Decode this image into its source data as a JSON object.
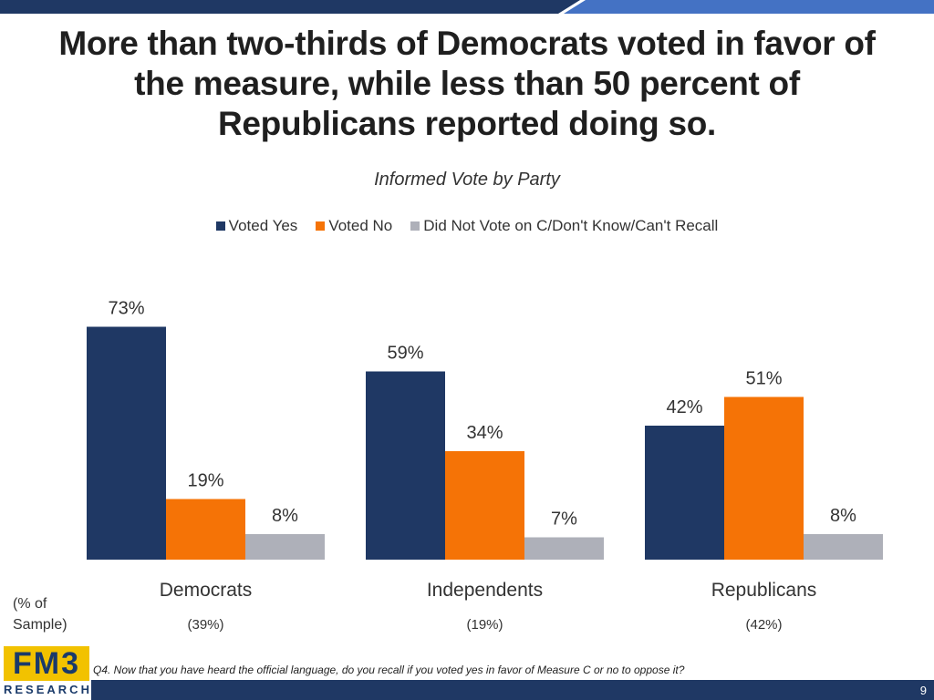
{
  "title": "More than two-thirds of Democrats voted in favor of the measure, while less than 50 percent of Republicans reported doing so.",
  "colors": {
    "voted_yes": "#1f3864",
    "voted_no": "#f57306",
    "did_not_vote": "#aeb0b9",
    "band_dark": "#1f3864",
    "band_light": "#4472c4"
  },
  "chart_data": {
    "type": "bar",
    "title": "Informed Vote by Party",
    "categories": [
      "Democrats",
      "Independents",
      "Republicans"
    ],
    "category_samples": [
      "(39%)",
      "(19%)",
      "(42%)"
    ],
    "series": [
      {
        "name": "Voted Yes",
        "values": [
          73,
          59,
          42
        ],
        "labels": [
          "73%",
          "59%",
          "42%"
        ]
      },
      {
        "name": "Voted No",
        "values": [
          19,
          34,
          51
        ],
        "labels": [
          "19%",
          "34%",
          "51%"
        ]
      },
      {
        "name": "Did Not Vote on C/Don't Know/Can't Recall",
        "values": [
          8,
          7,
          8
        ],
        "labels": [
          "8%",
          "7%",
          "8%"
        ]
      }
    ],
    "ylim": [
      0,
      75
    ],
    "grid": false,
    "legend_position": "top"
  },
  "sample_label": "(% of Sample)",
  "logo": {
    "main": "FM3",
    "sub": "RESEARCH"
  },
  "footnote": "Q4. Now that you have heard the official language, do you recall if you voted yes in favor of Measure C or no to oppose it?",
  "page_number": "9"
}
